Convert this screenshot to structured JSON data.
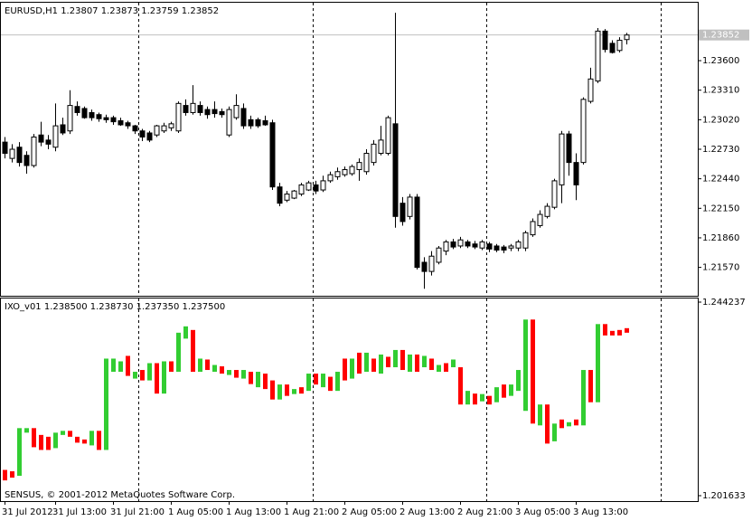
{
  "chart_data": [
    {
      "type": "candlestick",
      "title": "EURUSD,H1  1.23807 1.23873 1.23759 1.23852",
      "categories": [
        "31 Jul 2012",
        null,
        null,
        null,
        null,
        null,
        null,
        "31 Jul 13:00",
        null,
        null,
        null,
        null,
        null,
        null,
        null,
        "31 Jul 21:00",
        null,
        null,
        null,
        null,
        null,
        null,
        null,
        "1 Aug 05:00",
        null,
        null,
        null,
        null,
        null,
        null,
        null,
        "1 Aug 13:00",
        null,
        null,
        null,
        null,
        null,
        null,
        null,
        "1 Aug 21:00",
        null,
        null,
        null,
        null,
        null,
        null,
        null,
        "2 Aug 05:00",
        null,
        null,
        null,
        null,
        null,
        null,
        null,
        "2 Aug 13:00",
        null,
        null,
        null,
        null,
        null,
        null,
        null,
        "2 Aug 21:00",
        null,
        null,
        null,
        null,
        null,
        null,
        null,
        "3 Aug 05:00",
        null,
        null,
        null,
        null,
        null,
        null,
        null,
        "3 Aug 13:00",
        null,
        null,
        null,
        null,
        null,
        null,
        null
      ],
      "open": [
        1.228,
        1.2264,
        1.2275,
        1.2267,
        1.2257,
        1.2287,
        1.2282,
        1.2275,
        1.2297,
        1.2291,
        1.2315,
        1.2313,
        1.2309,
        1.2307,
        1.2304,
        1.2304,
        1.2301,
        1.2299,
        1.2296,
        1.2291,
        1.2289,
        1.2287,
        1.2291,
        1.2294,
        1.2291,
        1.2316,
        1.2309,
        1.2316,
        1.2312,
        1.2312,
        1.231,
        1.2287,
        1.2304,
        1.2313,
        1.2302,
        1.2302,
        1.2301,
        1.2299,
        1.2236,
        1.2223,
        1.2225,
        1.2229,
        1.2233,
        1.2238,
        1.2233,
        1.2242,
        1.2246,
        1.2248,
        1.2249,
        1.2253,
        1.2251,
        1.226,
        1.2269,
        1.2269,
        1.2298,
        1.222,
        1.2207,
        1.2226,
        1.2162,
        1.2153,
        1.2162,
        1.2173,
        1.2182,
        1.2178,
        1.2182,
        1.218,
        1.2176,
        1.218,
        1.2178,
        1.2177,
        1.2176,
        1.2176,
        1.2176,
        1.2189,
        1.2198,
        1.2207,
        1.2216,
        1.2238,
        1.2288,
        1.226,
        1.226,
        1.232,
        1.234,
        1.2389,
        1.2377,
        1.237,
        1.23807
      ],
      "high": [
        1.2285,
        1.2278,
        1.228,
        1.2271,
        1.2288,
        1.23,
        1.2287,
        1.2318,
        1.2304,
        1.2331,
        1.232,
        1.2315,
        1.2312,
        1.2309,
        1.2307,
        1.2306,
        1.2304,
        1.2301,
        1.2297,
        1.2293,
        1.2291,
        1.2297,
        1.2299,
        1.23,
        1.232,
        1.2322,
        1.2336,
        1.232,
        1.2315,
        1.232,
        1.2313,
        1.2315,
        1.2327,
        1.2318,
        1.2306,
        1.2304,
        1.2306,
        1.2302,
        1.224,
        1.2232,
        1.2233,
        1.224,
        1.2242,
        1.2242,
        1.2247,
        1.2251,
        1.2255,
        1.2256,
        1.2258,
        1.2264,
        1.2273,
        1.2282,
        1.2296,
        1.2306,
        1.2407,
        1.2226,
        1.2229,
        1.2229,
        1.2167,
        1.2173,
        1.2178,
        1.2184,
        1.2185,
        1.2187,
        1.2184,
        1.2183,
        1.2184,
        1.2182,
        1.218,
        1.2179,
        1.218,
        1.2184,
        1.2193,
        1.2205,
        1.2213,
        1.222,
        1.2244,
        1.2291,
        1.2291,
        1.2269,
        1.2324,
        1.2353,
        1.2392,
        1.2391,
        1.238,
        1.2383,
        1.23873
      ],
      "low": [
        1.2264,
        1.226,
        1.2256,
        1.2249,
        1.2255,
        1.2276,
        1.2273,
        1.2271,
        1.2287,
        1.2288,
        1.2306,
        1.2303,
        1.2301,
        1.23,
        1.2299,
        1.2297,
        1.2296,
        1.2293,
        1.2288,
        1.2281,
        1.228,
        1.2285,
        1.2289,
        1.2291,
        1.2289,
        1.2306,
        1.2307,
        1.2306,
        1.2303,
        1.2304,
        1.2304,
        1.2285,
        1.2302,
        1.2293,
        1.2293,
        1.2294,
        1.2296,
        1.2233,
        1.2217,
        1.2221,
        1.2224,
        1.2227,
        1.2232,
        1.2229,
        1.2231,
        1.224,
        1.2243,
        1.2246,
        1.2247,
        1.2242,
        1.2248,
        1.2257,
        1.2267,
        1.2267,
        1.2196,
        1.2198,
        1.2204,
        1.2155,
        1.2136,
        1.2149,
        1.216,
        1.2169,
        1.2175,
        1.2176,
        1.2176,
        1.2175,
        1.2174,
        1.2172,
        1.2172,
        1.2171,
        1.2173,
        1.2173,
        1.2173,
        1.2187,
        1.2196,
        1.2205,
        1.2214,
        1.222,
        1.2247,
        1.2223,
        1.2258,
        1.2318,
        1.2338,
        1.2368,
        1.2367,
        1.2368,
        1.23759
      ],
      "close": [
        1.2269,
        1.2273,
        1.226,
        1.2257,
        1.2285,
        1.228,
        1.2278,
        1.2296,
        1.2289,
        1.2316,
        1.2309,
        1.2304,
        1.2304,
        1.2303,
        1.2302,
        1.23,
        1.2297,
        1.2296,
        1.2291,
        1.2285,
        1.2282,
        1.2296,
        1.2296,
        1.2298,
        1.2318,
        1.2309,
        1.2318,
        1.2309,
        1.2307,
        1.2308,
        1.2307,
        1.2312,
        1.2316,
        1.2296,
        1.2296,
        1.2296,
        1.2297,
        1.2236,
        1.222,
        1.2229,
        1.2232,
        1.2238,
        1.224,
        1.2232,
        1.2242,
        1.2248,
        1.2251,
        1.2253,
        1.2256,
        1.226,
        1.2269,
        1.2278,
        1.2282,
        1.2304,
        1.2207,
        1.2202,
        1.2226,
        1.2157,
        1.2153,
        1.2168,
        1.2176,
        1.2182,
        1.2177,
        1.2184,
        1.2178,
        1.2177,
        1.2182,
        1.2175,
        1.2174,
        1.2174,
        1.2178,
        1.2182,
        1.2191,
        1.2202,
        1.2209,
        1.2217,
        1.2242,
        1.2288,
        1.226,
        1.2238,
        1.2322,
        1.2342,
        1.2389,
        1.2371,
        1.2368,
        1.238,
        1.23852
      ],
      "up_color": "#ffffff",
      "down_color": "#000000",
      "outline": "#000000",
      "current_price": 1.23852,
      "ylim": [
        1.213,
        1.2416
      ],
      "yticks": [
        {
          "value": 1.236,
          "label": "1.23600"
        },
        {
          "value": 1.2331,
          "label": "1.23310"
        },
        {
          "value": 1.2302,
          "label": "1.23020"
        },
        {
          "value": 1.2273,
          "label": "1.22730"
        },
        {
          "value": 1.2244,
          "label": "1.22440"
        },
        {
          "value": 1.2215,
          "label": "1.22150"
        },
        {
          "value": 1.2186,
          "label": "1.21860"
        },
        {
          "value": 1.2157,
          "label": "1.21570"
        }
      ]
    },
    {
      "type": "candlestick",
      "title": "IXO_v01 1.238500 1.238730 1.237350 1.237500",
      "note": "SENSUS, © 2001-2012 MetaQuotes Software Corp.",
      "open": [
        1.2073,
        1.207,
        1.206,
        1.2155,
        1.2165,
        1.215,
        1.2146,
        1.2121,
        1.215,
        1.2159,
        1.2146,
        1.214,
        1.2127,
        1.2159,
        1.2117,
        1.2289,
        1.2289,
        1.2324,
        1.2274,
        1.2293,
        1.227,
        1.2308,
        1.2241,
        1.2312,
        1.2289,
        1.2362,
        1.2381,
        1.2289,
        1.2316,
        1.2289,
        1.2301,
        1.2282,
        1.2293,
        1.2274,
        1.2289,
        1.2255,
        1.2285,
        1.227,
        1.2228,
        1.2261,
        1.224,
        1.2255,
        1.2247,
        1.2285,
        1.2255,
        1.2278,
        1.2247,
        1.2318,
        1.2274,
        1.2331,
        1.2289,
        1.2318,
        1.2285,
        1.2322,
        1.2299,
        1.2337,
        1.2289,
        1.2327,
        1.2299,
        1.2318,
        1.2289,
        1.2308,
        1.2299,
        1.2299,
        1.2217,
        1.2241,
        1.2224,
        1.2236,
        1.2222,
        1.2261,
        1.2236,
        1.2247,
        1.2203,
        1.2404,
        1.2171,
        1.2217,
        1.2136,
        1.2184,
        1.2169,
        1.2184,
        1.2171,
        1.2293,
        1.2222,
        1.2394,
        1.2379,
        1.2381,
        1.2385
      ],
      "close": [
        1.205,
        1.2056,
        1.2165,
        1.2165,
        1.2123,
        1.2117,
        1.2117,
        1.2155,
        1.2159,
        1.2146,
        1.2133,
        1.2131,
        1.2159,
        1.2117,
        1.2318,
        1.2318,
        1.2312,
        1.228,
        1.2289,
        1.227,
        1.2308,
        1.2241,
        1.2312,
        1.2289,
        1.2375,
        1.2389,
        1.2289,
        1.2318,
        1.2293,
        1.2304,
        1.2285,
        1.2293,
        1.2276,
        1.2293,
        1.2262,
        1.2289,
        1.2251,
        1.2228,
        1.2261,
        1.2236,
        1.2251,
        1.2241,
        1.2285,
        1.2261,
        1.2285,
        1.2247,
        1.2289,
        1.227,
        1.2318,
        1.2285,
        1.2331,
        1.2289,
        1.2327,
        1.2299,
        1.2337,
        1.2293,
        1.2327,
        1.2289,
        1.2324,
        1.2293,
        1.2304,
        1.2289,
        1.2316,
        1.2217,
        1.2247,
        1.2217,
        1.224,
        1.2217,
        1.2255,
        1.2232,
        1.2261,
        1.2293,
        1.2404,
        1.2175,
        1.2217,
        1.2131,
        1.2175,
        1.2165,
        1.2178,
        1.2171,
        1.2293,
        1.2222,
        1.2394,
        1.2369,
        1.2369,
        1.2369,
        1.2375
      ],
      "up_color": "#32cd32",
      "down_color": "#ff0000",
      "ylim": [
        1.201633,
        1.244237
      ],
      "yticks": [
        1.244237,
        1.201633
      ]
    }
  ]
}
